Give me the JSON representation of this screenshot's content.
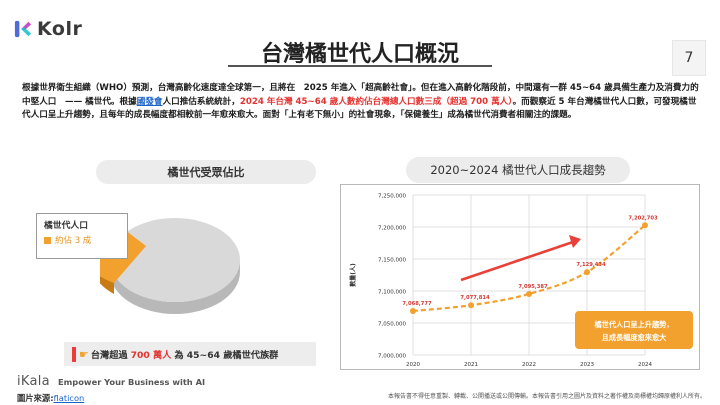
{
  "brand": {
    "name": "Kolr",
    "mark_colors": [
      "#4f6bd8",
      "#c44fd0",
      "#1fc2c6"
    ]
  },
  "header": {
    "title": "台灣橘世代人口概況",
    "page_number": "7"
  },
  "paragraph": {
    "p1": "根據世界衛生組織（WHO）預測，台灣高齡化速度達全球第一，且將在　2025 年進入「超高齡社會」。但在進入高齡化階段前，中間還有一群 45~64 歲具備生產力及消費力的中堅人口　—— 橘世代。根據",
    "link": "國發會",
    "p2": "人口推估系統統計，",
    "highlight": "2024 年台灣 45~64 歲人數約佔台灣總人口數三成（超過 700 萬人）",
    "p3": "。而觀察近 5 年台灣橘世代人口數，可發現橘世代人口呈上升趨勢，且每年的成長幅度都相較前一年愈來愈大。面對「上有老下無小」的社會現象，「保健養生」成為橘世代消費者相關注的課題。"
  },
  "left_panel": {
    "header": "橘世代受眾佔比",
    "pie_label_title": "橘世代人口",
    "pie_label_value": "約佔 3 成",
    "share": 0.3,
    "slice_color": "#f2a12e",
    "rest_color": "#d9d9d9",
    "footnote_pre": "台灣超過",
    "footnote_highlight": "700 萬人",
    "footnote_post": "為 45~64 歲橘世代族群"
  },
  "right_panel": {
    "header": "2020~2024 橘世代人口成長趨勢",
    "callout_line1": "橘世代人口呈上升趨勢，",
    "callout_line2": "且成長幅度愈來愈大",
    "arrow_color": "#e8413a",
    "callout_color": "#f2a12e"
  },
  "chart_data": {
    "type": "line",
    "title": "",
    "xlabel": "",
    "ylabel": "數量(人)",
    "x": [
      "2020",
      "2021",
      "2022",
      "2023",
      "2024"
    ],
    "series": [
      {
        "values": [
          7068777,
          7077814,
          7095387,
          7129434,
          7202703
        ],
        "point_labels": [
          "7,068,777",
          "7,077,814",
          "7,095,387",
          "7,129,434",
          "7,202,703"
        ]
      }
    ],
    "ylim": [
      7000000,
      7250000
    ],
    "yticks": [
      "7,000,000",
      "7,050,000",
      "7,100,000",
      "7,150,000",
      "7,200,000",
      "7,250,000"
    ],
    "grid": true,
    "line_color": "#f2a12e",
    "label_color": "#d23a34"
  },
  "footer": {
    "brand": "iKala",
    "tagline": "Empower Your Business with AI",
    "source_label": "圖片來源:",
    "source_link": "flaticon",
    "disclaimer": "本報告書不得任意重製、轉載、公開播送或公開傳輸。本報告書引用之圖片及資料之著作權及商標權均歸原權利人所有。"
  }
}
